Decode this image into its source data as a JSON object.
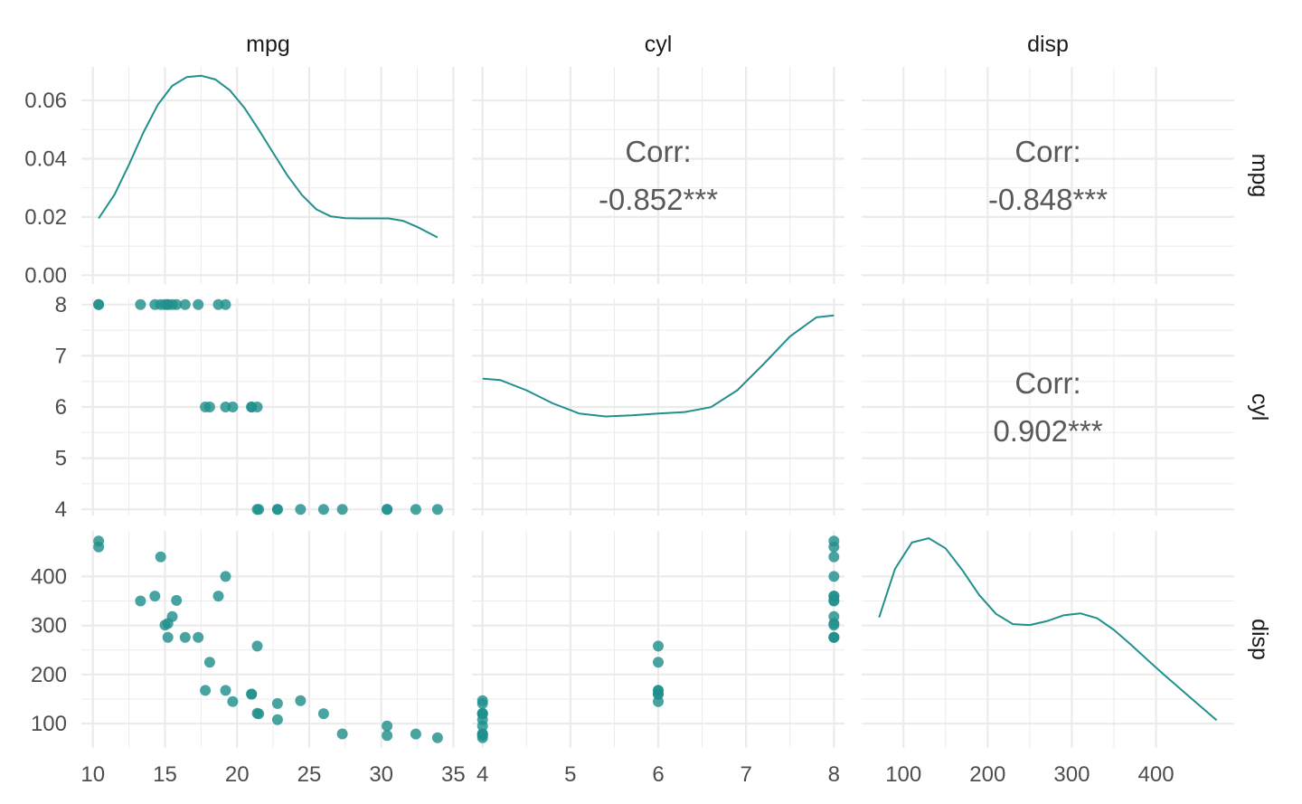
{
  "chart_data": {
    "type": "scatter-matrix",
    "variables": [
      "mpg",
      "cyl",
      "disp"
    ],
    "color": "#21908C",
    "grid_color": "#EBEBEB",
    "axes": {
      "mpg": {
        "range": [
          9.2,
          35.1
        ],
        "ticks": [
          10,
          15,
          20,
          25,
          30,
          35
        ]
      },
      "cyl": {
        "range": [
          3.88,
          8.12
        ],
        "ticks": [
          4,
          5,
          6,
          7,
          8
        ]
      },
      "disp": {
        "range": [
          50.35,
          492.85
        ],
        "ticks": [
          100,
          200,
          300,
          400
        ]
      }
    },
    "density_y_range": [
      -0.003,
      0.0715
    ],
    "density_y_ticks": [
      "0.00",
      "0.02",
      "0.04",
      "0.06"
    ],
    "mpg_density": {
      "x": [
        10.4,
        11.5,
        12.5,
        13.5,
        14.5,
        15.5,
        16.5,
        17.5,
        18.5,
        19.5,
        20.5,
        21.5,
        22.5,
        23.5,
        24.5,
        25.5,
        26.5,
        27.5,
        28.5,
        29.5,
        30.5,
        31.5,
        32.5,
        33.9
      ],
      "y": [
        0.0195,
        0.0277,
        0.0379,
        0.049,
        0.0585,
        0.065,
        0.068,
        0.0685,
        0.0672,
        0.0635,
        0.0575,
        0.05,
        0.042,
        0.0342,
        0.0275,
        0.0226,
        0.0202,
        0.0196,
        0.0195,
        0.0195,
        0.0195,
        0.0187,
        0.0166,
        0.013
      ]
    },
    "cyl_density": {
      "x": [
        4.0,
        4.2,
        4.5,
        4.8,
        5.1,
        5.4,
        5.7,
        6.0,
        6.3,
        6.6,
        6.9,
        7.2,
        7.5,
        7.8,
        8.0
      ],
      "y": [
        0.044,
        0.0435,
        0.04,
        0.0355,
        0.032,
        0.031,
        0.0314,
        0.032,
        0.0325,
        0.0342,
        0.04,
        0.049,
        0.0585,
        0.065,
        0.0657
      ]
    },
    "disp_density": {
      "x": [
        71.1,
        90,
        110,
        130,
        150,
        170,
        190,
        210,
        230,
        250,
        270,
        290,
        310,
        330,
        350,
        370,
        390,
        410,
        430,
        450,
        472
      ],
      "y": [
        0.0418,
        0.0585,
        0.0675,
        0.069,
        0.0655,
        0.058,
        0.0495,
        0.043,
        0.0395,
        0.0392,
        0.0405,
        0.0425,
        0.0432,
        0.0415,
        0.0375,
        0.0325,
        0.0272,
        0.022,
        0.017,
        0.012,
        0.0065
      ]
    },
    "points": [
      [
        21.0,
        6,
        160
      ],
      [
        21.0,
        6,
        160
      ],
      [
        22.8,
        4,
        108
      ],
      [
        21.4,
        6,
        258
      ],
      [
        18.7,
        8,
        360
      ],
      [
        18.1,
        6,
        225
      ],
      [
        14.3,
        8,
        360
      ],
      [
        24.4,
        4,
        146.7
      ],
      [
        22.8,
        4,
        140.8
      ],
      [
        19.2,
        6,
        167.6
      ],
      [
        17.8,
        6,
        167.6
      ],
      [
        16.4,
        8,
        275.8
      ],
      [
        17.3,
        8,
        275.8
      ],
      [
        15.2,
        8,
        275.8
      ],
      [
        10.4,
        8,
        472
      ],
      [
        10.4,
        8,
        460
      ],
      [
        14.7,
        8,
        440
      ],
      [
        32.4,
        4,
        78.7
      ],
      [
        30.4,
        4,
        75.7
      ],
      [
        33.9,
        4,
        71.1
      ],
      [
        21.5,
        4,
        120.1
      ],
      [
        15.5,
        8,
        318
      ],
      [
        15.2,
        8,
        304
      ],
      [
        13.3,
        8,
        350
      ],
      [
        19.2,
        8,
        400
      ],
      [
        27.3,
        4,
        79
      ],
      [
        26.0,
        4,
        120.3
      ],
      [
        30.4,
        4,
        95.1
      ],
      [
        15.8,
        8,
        351
      ],
      [
        19.7,
        6,
        145
      ],
      [
        15.0,
        8,
        301
      ],
      [
        21.4,
        4,
        121
      ]
    ],
    "correlations": [
      {
        "row": "mpg",
        "col": "cyl",
        "label": "Corr:",
        "value": "-0.852***"
      },
      {
        "row": "mpg",
        "col": "disp",
        "label": "Corr:",
        "value": "-0.848***"
      },
      {
        "row": "cyl",
        "col": "disp",
        "label": "Corr:",
        "value": "0.902***"
      }
    ]
  }
}
